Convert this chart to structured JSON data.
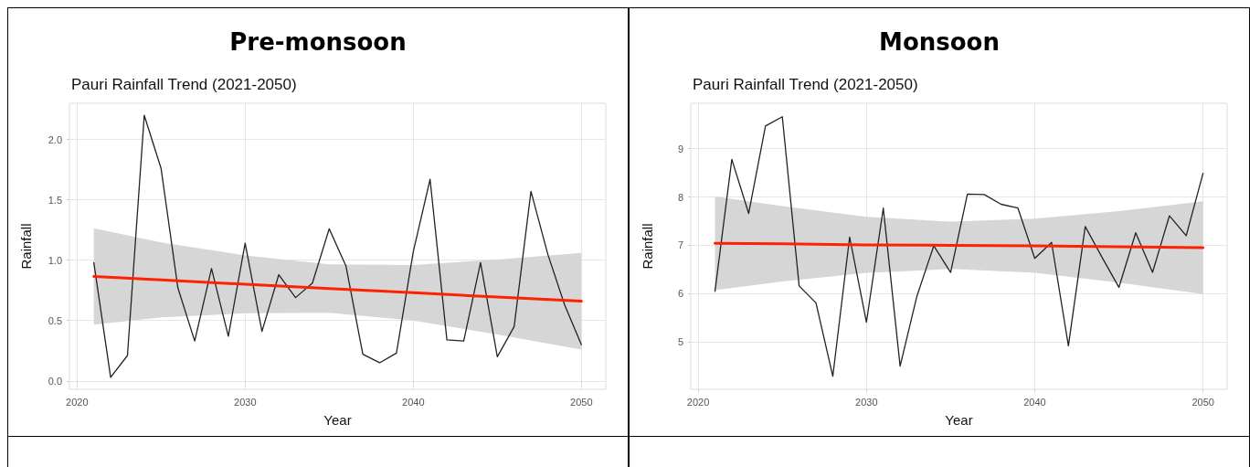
{
  "chart_data": [
    {
      "type": "line",
      "title": "Pre-monsoon",
      "subtitle": "Pauri Rainfall Trend (2021-2050)",
      "xlabel": "Year",
      "ylabel": "Rainfall",
      "xlim": [
        2019.55,
        2051.45
      ],
      "xticks": [
        2020,
        2030,
        2040,
        2050
      ],
      "ylim": [
        -0.07,
        2.3
      ],
      "yticks": [
        {
          "value": 0,
          "label": "0.0"
        },
        {
          "value": 0.5,
          "label": "0.5"
        },
        {
          "value": 1,
          "label": "1.0"
        },
        {
          "value": 1.5,
          "label": "1.5"
        },
        {
          "value": 2,
          "label": "2.0"
        }
      ],
      "grid": true,
      "marker": "none",
      "line_style": "solid",
      "x": [
        2021,
        2022,
        2023,
        2024,
        2025,
        2026,
        2027,
        2028,
        2029,
        2030,
        2031,
        2032,
        2033,
        2034,
        2035,
        2036,
        2037,
        2038,
        2039,
        2040,
        2041,
        2042,
        2043,
        2044,
        2045,
        2046,
        2047,
        2048,
        2049,
        2050
      ],
      "series": [
        {
          "color": "#222222",
          "values": [
            0.98,
            0.03,
            0.21,
            2.2,
            1.76,
            0.77,
            0.33,
            0.93,
            0.37,
            1.14,
            0.41,
            0.88,
            0.69,
            0.81,
            1.26,
            0.95,
            0.22,
            0.15,
            0.23,
            1.07,
            1.67,
            0.34,
            0.33,
            0.98,
            0.2,
            0.45,
            1.57,
            1.05,
            0.63,
            0.3
          ]
        },
        {
          "type": "line",
          "color": "#ff2200",
          "x": [
            2021,
            2025,
            2030,
            2035,
            2040,
            2045,
            2050
          ],
          "values": [
            0.865,
            0.837,
            0.8,
            0.765,
            0.73,
            0.695,
            0.66
          ],
          "lower": [
            0.465,
            0.527,
            0.56,
            0.565,
            0.5,
            0.385,
            0.26
          ],
          "upper": [
            1.265,
            1.147,
            1.04,
            0.965,
            0.96,
            1.005,
            1.06
          ]
        }
      ]
    },
    {
      "type": "line",
      "title": "Monsoon",
      "subtitle": "Pauri Rainfall Trend (2021-2050)",
      "xlabel": "Year",
      "ylabel": "Rainfall",
      "xlim": [
        2019.56,
        2051.43
      ],
      "xticks": [
        2020,
        2030,
        2040,
        2050
      ],
      "ylim": [
        4.02,
        9.94
      ],
      "yticks": [
        5,
        6,
        7,
        8,
        9
      ],
      "grid": true,
      "marker": "none",
      "line_style": "solid",
      "x": [
        2021,
        2022,
        2023,
        2024,
        2025,
        2026,
        2027,
        2028,
        2029,
        2030,
        2031,
        2032,
        2033,
        2034,
        2035,
        2036,
        2037,
        2038,
        2039,
        2040,
        2041,
        2042,
        2043,
        2044,
        2045,
        2046,
        2047,
        2048,
        2049,
        2050
      ],
      "series": [
        {
          "color": "#222222",
          "values": [
            6.05,
            8.78,
            7.66,
            9.47,
            9.66,
            6.16,
            5.81,
            4.29,
            7.17,
            5.41,
            7.77,
            4.5,
            5.95,
            6.99,
            6.44,
            8.06,
            8.05,
            7.85,
            7.77,
            6.73,
            7.06,
            4.92,
            7.39,
            6.75,
            6.13,
            7.26,
            6.44,
            7.61,
            7.2,
            8.49
          ]
        },
        {
          "type": "line",
          "color": "#ff2200",
          "x": [
            2021,
            2025,
            2030,
            2035,
            2040,
            2045,
            2050
          ],
          "values": [
            7.04,
            7.03,
            7.01,
            7.0,
            6.99,
            6.97,
            6.95
          ],
          "lower": [
            6.07,
            6.25,
            6.43,
            6.51,
            6.43,
            6.23,
            5.99
          ],
          "upper": [
            8.01,
            7.81,
            7.59,
            7.49,
            7.55,
            7.71,
            7.91
          ]
        }
      ]
    }
  ]
}
